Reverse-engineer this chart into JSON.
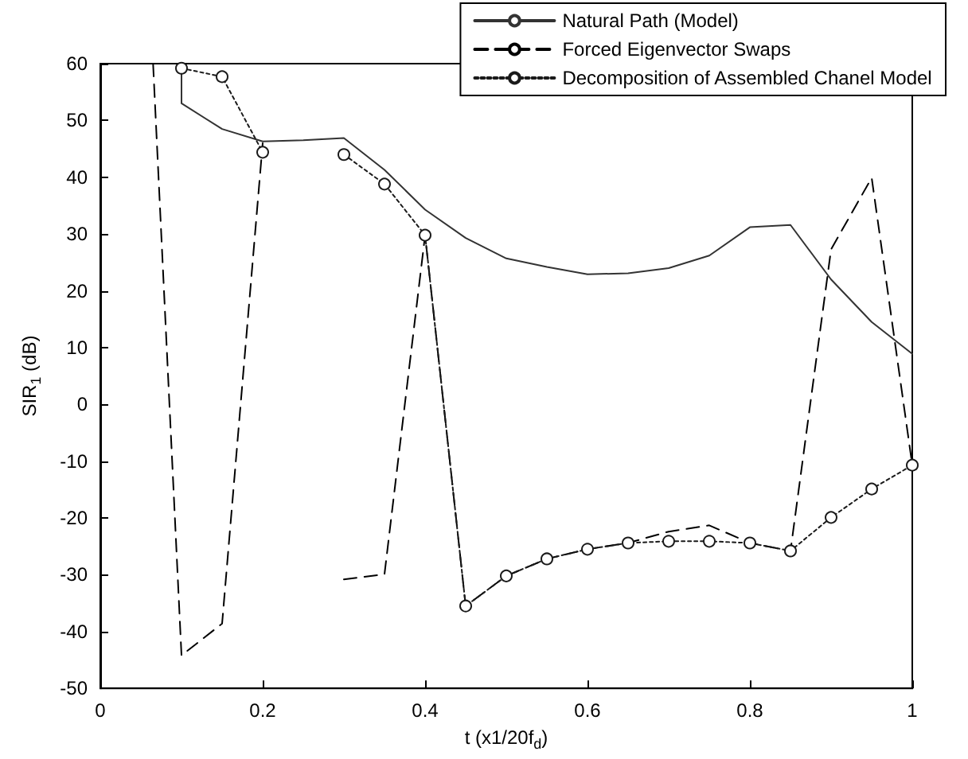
{
  "chart_data": {
    "type": "line",
    "xlabel": "t (x1/20f$_{d}$)",
    "ylabel": "SIR$_{1}$ (dB)",
    "xlim": [
      0,
      1
    ],
    "xticks": [
      0,
      0.2,
      0.4,
      0.6,
      0.8,
      1
    ],
    "ylim": [
      -50,
      60
    ],
    "yticks": [
      -50,
      -40,
      -30,
      -20,
      -10,
      0,
      10,
      20,
      30,
      40,
      50,
      60
    ],
    "grid": false,
    "legend": "top right",
    "series": [
      {
        "name": "Natural Path (Model)",
        "color": "#333333",
        "line_style": "solid",
        "marker": "none",
        "x": [
          0.1,
          0.1,
          0.15,
          0.2,
          0.25,
          0.3,
          0.35,
          0.4,
          0.45,
          0.5,
          0.55,
          0.6,
          0.65,
          0.7,
          0.75,
          0.8,
          0.85,
          0.9,
          0.95,
          1.0
        ],
        "values": [
          60,
          53,
          48.5,
          46.3,
          46.5,
          46.9,
          41.3,
          34.3,
          29.3,
          25.7,
          24.2,
          22.9,
          23.1,
          24,
          26.2,
          31.2,
          31.6,
          22,
          14.5,
          8.9
        ]
      },
      {
        "name": "Forced Eigenvector Swaps",
        "color": "#000000",
        "line_style": "dashed",
        "marker": "none",
        "x": [
          0.065,
          0.1,
          0.15,
          0.2,
          0.25,
          0.3,
          0.35,
          0.4,
          0.45,
          0.5,
          0.55,
          0.6,
          0.65,
          0.7,
          0.75,
          0.8,
          0.85,
          0.9,
          0.95,
          1.0
        ],
        "values": [
          60,
          -44.2,
          -38.6,
          46,
          null,
          -30.8,
          -29.9,
          29.8,
          -35.5,
          -30.2,
          -27.2,
          -25.5,
          -24.4,
          -22.4,
          -21.3,
          -24.4,
          -25.8,
          27.3,
          39.9,
          -10.7
        ]
      },
      {
        "name": "Decomposition of Assembled Chanel Model",
        "color": "#1a1a1a",
        "line_style": "dotted",
        "marker": "circle",
        "x": [
          0.1,
          0.15,
          0.2,
          0.25,
          0.3,
          0.35,
          0.4,
          0.45,
          0.5,
          0.55,
          0.6,
          0.65,
          0.7,
          0.75,
          0.8,
          0.85,
          0.9,
          0.95,
          1.0
        ],
        "values": [
          59.2,
          57.7,
          44.4,
          null,
          44,
          38.8,
          29.8,
          -35.5,
          -30.2,
          -27.2,
          -25.5,
          -24.4,
          -24.1,
          -24.1,
          -24.4,
          -25.8,
          -19.9,
          -14.9,
          -10.7
        ]
      }
    ]
  }
}
